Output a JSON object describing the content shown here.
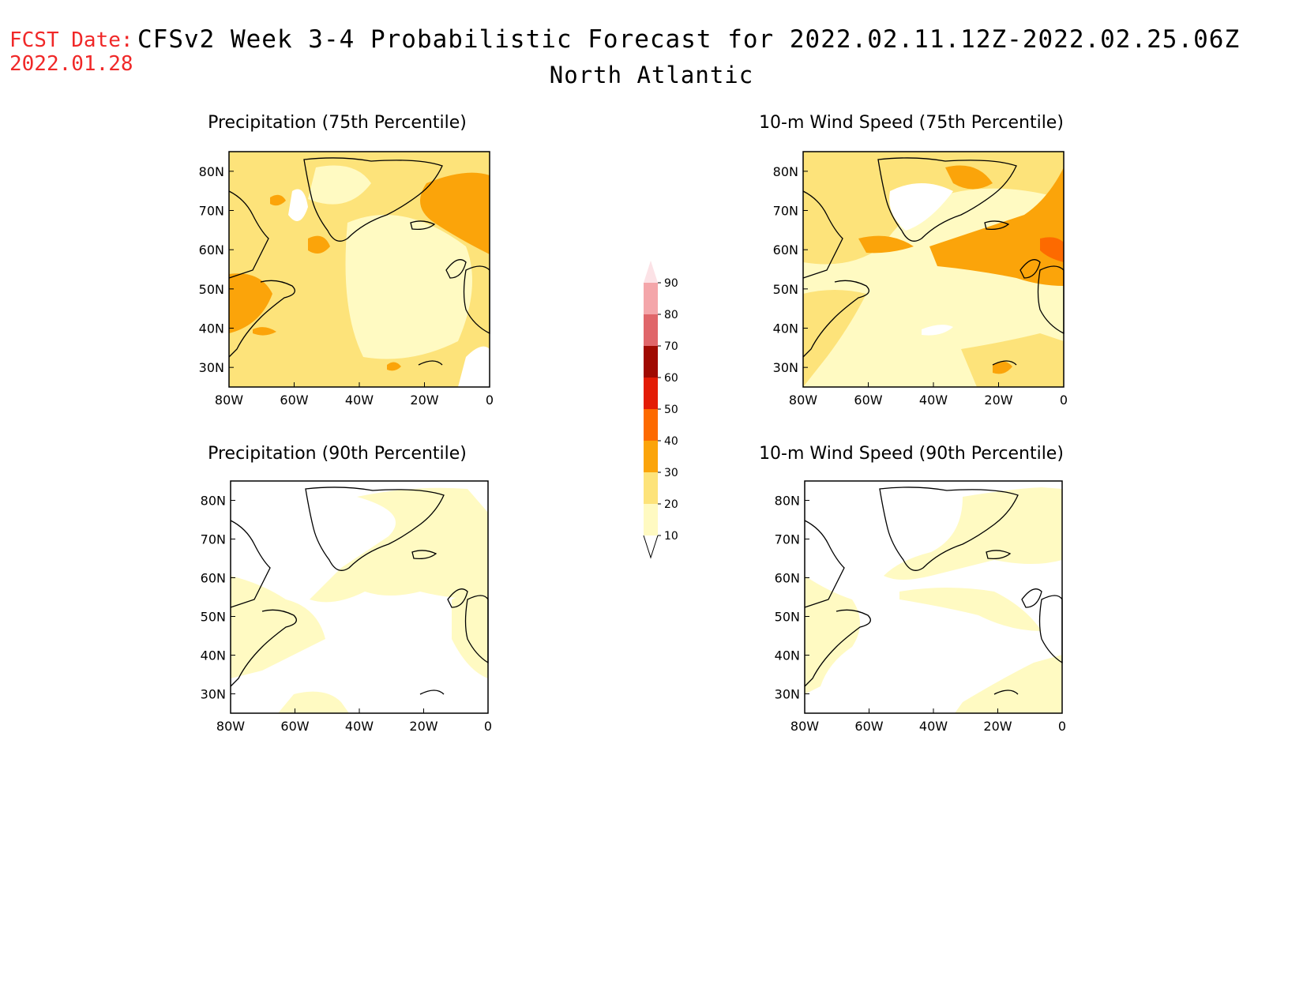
{
  "header": {
    "fcst_label": "FCST Date:",
    "fcst_date": "2022.01.28",
    "title": "CFSv2 Week 3-4 Probabilistic Forecast for 2022.02.11.12Z-2022.02.25.06Z",
    "subtitle": "North Atlantic"
  },
  "panels": [
    {
      "title": "Precipitation (75th Percentile)"
    },
    {
      "title": "10-m Wind Speed (75th Percentile)"
    },
    {
      "title": "Precipitation (90th Percentile)"
    },
    {
      "title": "10-m Wind Speed (90th Percentile)"
    }
  ],
  "axes": {
    "lat_labels": [
      "80N",
      "70N",
      "60N",
      "50N",
      "40N",
      "30N"
    ],
    "lon_labels": [
      "80W",
      "60W",
      "40W",
      "20W",
      "0"
    ]
  },
  "colorbar": {
    "levels": [
      "10",
      "20",
      "30",
      "40",
      "50",
      "60",
      "70",
      "80",
      "90"
    ],
    "colors": [
      "#fffac2",
      "#fde37a",
      "#fba40a",
      "#fd6a00",
      "#e31c06",
      "#a00a02",
      "#e0666a",
      "#f4a6aa",
      "#fce2e6"
    ]
  },
  "map_colors": {
    "c10": "#fffac2",
    "c20": "#fde37a",
    "c30": "#fba40a",
    "c40": "#fd6a00",
    "land_outline": "#000000"
  }
}
